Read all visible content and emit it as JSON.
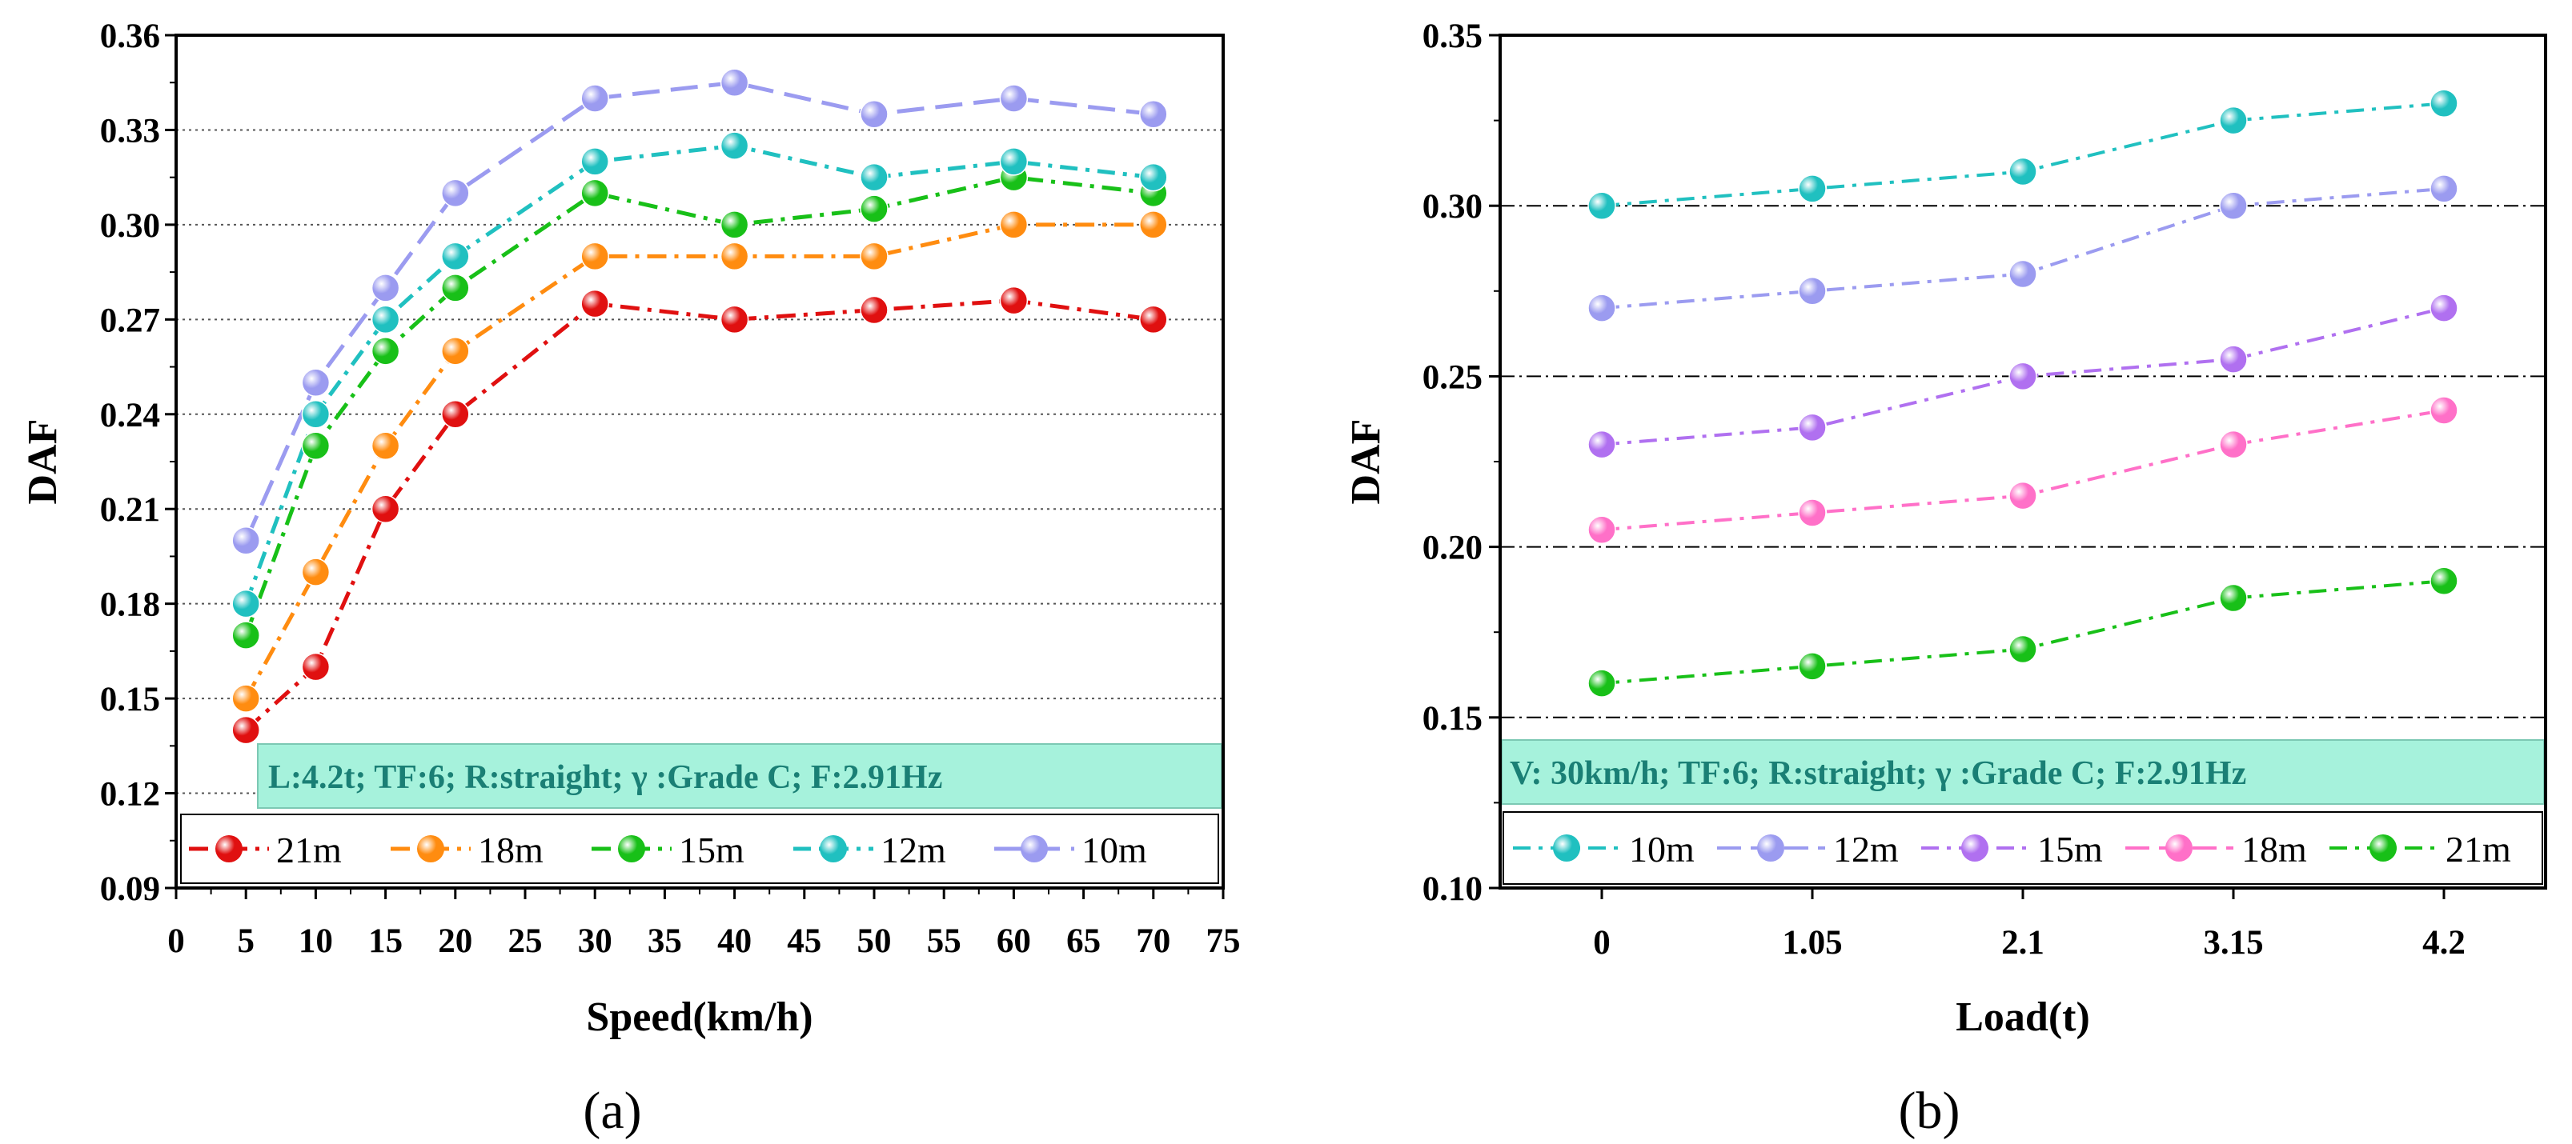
{
  "chart_data": [
    {
      "type": "line",
      "panel_label": "(a)",
      "xlabel": "Speed(km/h)",
      "ylabel": "DAF",
      "xlim": [
        0,
        75
      ],
      "ylim": [
        0.09,
        0.36
      ],
      "x_ticks": [
        "0",
        "5",
        "10",
        "15",
        "20",
        "25",
        "30",
        "35",
        "40",
        "45",
        "50",
        "55",
        "60",
        "65",
        "70",
        "75"
      ],
      "y_ticks": [
        "0.09",
        "0.12",
        "0.15",
        "0.18",
        "0.21",
        "0.24",
        "0.27",
        "0.30",
        "0.33",
        "0.36"
      ],
      "grid": "horizontal dotted",
      "x": [
        5,
        10,
        15,
        20,
        30,
        40,
        50,
        60,
        70
      ],
      "series": [
        {
          "name": "21m",
          "color": "#e01010",
          "values": [
            0.14,
            0.16,
            0.21,
            0.24,
            0.275,
            0.27,
            0.273,
            0.276,
            0.27
          ]
        },
        {
          "name": "18m",
          "color": "#ff8c10",
          "values": [
            0.15,
            0.19,
            0.23,
            0.26,
            0.29,
            0.29,
            0.29,
            0.3,
            0.3
          ]
        },
        {
          "name": "15m",
          "color": "#18c018",
          "values": [
            0.17,
            0.23,
            0.26,
            0.28,
            0.31,
            0.3,
            0.305,
            0.315,
            0.31
          ]
        },
        {
          "name": "12m",
          "color": "#20c0c0",
          "values": [
            0.18,
            0.24,
            0.27,
            0.29,
            0.32,
            0.325,
            0.315,
            0.32,
            0.315
          ]
        },
        {
          "name": "10m",
          "color": "#9b9bf0",
          "values": [
            0.2,
            0.25,
            0.28,
            0.31,
            0.34,
            0.345,
            0.335,
            0.34,
            0.335
          ]
        }
      ],
      "annotation": "L:4.2t;   TF:6;   R:straight;   γ :Grade C;   F:2.91Hz",
      "legend_position": "bottom"
    },
    {
      "type": "line",
      "panel_label": "(b)",
      "xlabel": "Load(t)",
      "ylabel": "DAF",
      "ylim": [
        0.1,
        0.35
      ],
      "categories": [
        "0",
        "1.05",
        "2.1",
        "3.15",
        "4.2"
      ],
      "y_ticks": [
        "0.10",
        "0.15",
        "0.20",
        "0.25",
        "0.30",
        "0.35"
      ],
      "grid": "horizontal dash-dot at 0.15, 0.20, 0.25, 0.30",
      "series": [
        {
          "name": "10m",
          "color": "#20c0c0",
          "values": [
            0.3,
            0.305,
            0.31,
            0.325,
            0.33
          ]
        },
        {
          "name": "12m",
          "color": "#9b9bf0",
          "values": [
            0.27,
            0.275,
            0.28,
            0.3,
            0.305
          ]
        },
        {
          "name": "15m",
          "color": "#b070f0",
          "values": [
            0.23,
            0.235,
            0.25,
            0.255,
            0.27
          ]
        },
        {
          "name": "18m",
          "color": "#ff70c8",
          "values": [
            0.205,
            0.21,
            0.215,
            0.23,
            0.24
          ]
        },
        {
          "name": "21m",
          "color": "#18c018",
          "values": [
            0.16,
            0.165,
            0.17,
            0.185,
            0.19
          ]
        }
      ],
      "annotation": "V:   30km/h;   TF:6;   R:straight;   γ :Grade C;   F:2.91Hz",
      "legend_position": "bottom"
    }
  ]
}
